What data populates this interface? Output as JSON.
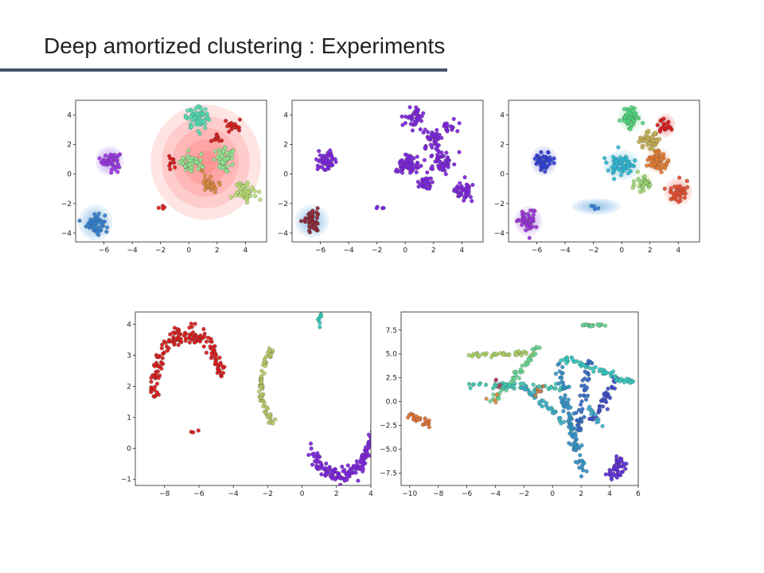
{
  "slide": {
    "title": "Deep amortized clustering : Experiments"
  },
  "chart_data": [
    {
      "type": "scatter",
      "panel": "top-left",
      "title": "",
      "xlabel": "",
      "ylabel": "",
      "xlim": [
        -8,
        5.5
      ],
      "ylim": [
        -4.6,
        5
      ],
      "xticks": [
        -6,
        -4,
        -2,
        0,
        2,
        4
      ],
      "yticks": [
        -4,
        -2,
        0,
        2,
        4
      ],
      "grid": false,
      "ellipses": [
        {
          "cx": 1.2,
          "cy": 0.8,
          "rx": 3.9,
          "ry": 3.9,
          "color": "#ff3030"
        },
        {
          "cx": -5.6,
          "cy": 0.9,
          "rx": 1.0,
          "ry": 1.0,
          "color": "#8a4df2"
        },
        {
          "cx": -6.6,
          "cy": -3.3,
          "rx": 1.2,
          "ry": 1.2,
          "color": "#3a8fd9"
        },
        {
          "cx": 0.6,
          "cy": 3.8,
          "rx": 0.7,
          "ry": 0.7,
          "color": "#4ee0b2"
        },
        {
          "cx": 4.1,
          "cy": -1.1,
          "rx": 0.6,
          "ry": 0.6,
          "color": "#a8e070"
        }
      ],
      "series": [
        {
          "color": "#9b30e8",
          "cx": -5.5,
          "cy": 0.9,
          "sx": 0.32,
          "sy": 0.28,
          "n": 60
        },
        {
          "color": "#2e7fd6",
          "cx": -6.6,
          "cy": -3.3,
          "sx": 0.32,
          "sy": 0.38,
          "n": 55
        },
        {
          "color": "#4fe0b6",
          "cx": 0.6,
          "cy": 3.8,
          "sx": 0.4,
          "sy": 0.35,
          "n": 60
        },
        {
          "color": "#93e890",
          "cx": 2.6,
          "cy": 1.0,
          "sx": 0.4,
          "sy": 0.35,
          "n": 60
        },
        {
          "color": "#93e890",
          "cx": 0.2,
          "cy": 0.7,
          "sx": 0.4,
          "sy": 0.3,
          "n": 50
        },
        {
          "color": "#e08a3a",
          "cx": 1.5,
          "cy": -0.6,
          "sx": 0.3,
          "sy": 0.3,
          "n": 30
        },
        {
          "color": "#b8e070",
          "cx": 4.0,
          "cy": -1.2,
          "sx": 0.35,
          "sy": 0.3,
          "n": 45
        },
        {
          "color": "#d81515",
          "cx": 3.1,
          "cy": 3.3,
          "sx": 0.3,
          "sy": 0.25,
          "n": 18
        },
        {
          "color": "#d81515",
          "cx": 1.9,
          "cy": 2.3,
          "sx": 0.2,
          "sy": 0.15,
          "n": 12
        },
        {
          "color": "#d81515",
          "cx": -1.2,
          "cy": 0.6,
          "sx": 0.15,
          "sy": 0.3,
          "n": 10
        },
        {
          "color": "#d81515",
          "cx": -1.8,
          "cy": -2.3,
          "sx": 0.2,
          "sy": 0.1,
          "n": 4
        }
      ]
    },
    {
      "type": "scatter",
      "panel": "top-middle",
      "title": "",
      "xlabel": "",
      "ylabel": "",
      "xlim": [
        -8,
        5.5
      ],
      "ylim": [
        -4.6,
        5
      ],
      "xticks": [
        -6,
        -4,
        -2,
        0,
        2,
        4
      ],
      "yticks": [
        -4,
        -2,
        0,
        2,
        4
      ],
      "grid": false,
      "ellipses": [
        {
          "cx": -6.6,
          "cy": -3.2,
          "rx": 1.2,
          "ry": 1.1,
          "color": "#3a8fd9"
        }
      ],
      "series": [
        {
          "color": "#7b1de0",
          "cx": -5.5,
          "cy": 0.9,
          "sx": 0.32,
          "sy": 0.3,
          "n": 55
        },
        {
          "color": "#7b1de0",
          "cx": 0.6,
          "cy": 3.8,
          "sx": 0.35,
          "sy": 0.35,
          "n": 50
        },
        {
          "color": "#7b1de0",
          "cx": 2.0,
          "cy": 2.4,
          "sx": 0.35,
          "sy": 0.35,
          "n": 45
        },
        {
          "color": "#7b1de0",
          "cx": 2.6,
          "cy": 0.9,
          "sx": 0.4,
          "sy": 0.35,
          "n": 55
        },
        {
          "color": "#7b1de0",
          "cx": 0.0,
          "cy": 0.6,
          "sx": 0.45,
          "sy": 0.35,
          "n": 65
        },
        {
          "color": "#7b1de0",
          "cx": 1.5,
          "cy": -0.6,
          "sx": 0.3,
          "sy": 0.3,
          "n": 30
        },
        {
          "color": "#7b1de0",
          "cx": 4.0,
          "cy": -1.2,
          "sx": 0.35,
          "sy": 0.3,
          "n": 45
        },
        {
          "color": "#7b1de0",
          "cx": 3.1,
          "cy": 3.3,
          "sx": 0.3,
          "sy": 0.25,
          "n": 18
        },
        {
          "color": "#7b1de0",
          "cx": -1.8,
          "cy": -2.3,
          "sx": 0.2,
          "sy": 0.1,
          "n": 4
        },
        {
          "color": "#8a2030",
          "cx": -6.6,
          "cy": -3.2,
          "sx": 0.3,
          "sy": 0.35,
          "n": 45
        }
      ]
    },
    {
      "type": "scatter",
      "panel": "top-right",
      "title": "",
      "xlabel": "",
      "ylabel": "",
      "xlim": [
        -8,
        5.5
      ],
      "ylim": [
        -4.6,
        5
      ],
      "xticks": [
        -6,
        -4,
        -2,
        0,
        2,
        4
      ],
      "yticks": [
        -4,
        -2,
        0,
        2,
        4
      ],
      "grid": false,
      "ellipses": [
        {
          "cx": -5.5,
          "cy": 0.9,
          "rx": 0.95,
          "ry": 1.0,
          "color": "#5a6ae8"
        },
        {
          "cx": -6.6,
          "cy": -3.2,
          "rx": 1.0,
          "ry": 1.0,
          "color": "#a060e8"
        },
        {
          "cx": -1.8,
          "cy": -2.2,
          "rx": 1.7,
          "ry": 0.55,
          "color": "#3a8fd9"
        },
        {
          "cx": 0.6,
          "cy": 3.8,
          "rx": 0.9,
          "ry": 0.9,
          "color": "#70e08a"
        },
        {
          "cx": 3.1,
          "cy": 3.3,
          "rx": 0.7,
          "ry": 0.8,
          "color": "#e83a3a"
        },
        {
          "cx": 2.0,
          "cy": 2.3,
          "rx": 0.8,
          "ry": 0.8,
          "color": "#e0c060"
        },
        {
          "cx": 0.0,
          "cy": 0.6,
          "rx": 1.3,
          "ry": 1.0,
          "color": "#3ab8d8"
        },
        {
          "cx": 2.6,
          "cy": 0.9,
          "rx": 0.9,
          "ry": 0.85,
          "color": "#e88a40"
        },
        {
          "cx": 1.5,
          "cy": -0.6,
          "rx": 0.7,
          "ry": 0.7,
          "color": "#a8e070"
        },
        {
          "cx": 4.0,
          "cy": -1.2,
          "rx": 1.0,
          "ry": 0.95,
          "color": "#e85a3a"
        }
      ],
      "series": [
        {
          "color": "#2a3ad8",
          "cx": -5.5,
          "cy": 0.9,
          "sx": 0.32,
          "sy": 0.3,
          "n": 55
        },
        {
          "color": "#9a2ad8",
          "cx": -6.6,
          "cy": -3.2,
          "sx": 0.3,
          "sy": 0.35,
          "n": 45
        },
        {
          "color": "#2a78d8",
          "cx": -1.8,
          "cy": -2.3,
          "sx": 0.25,
          "sy": 0.1,
          "n": 4
        },
        {
          "color": "#4ad87a",
          "cx": 0.6,
          "cy": 3.8,
          "sx": 0.35,
          "sy": 0.35,
          "n": 50
        },
        {
          "color": "#d81515",
          "cx": 3.1,
          "cy": 3.3,
          "sx": 0.3,
          "sy": 0.25,
          "n": 18
        },
        {
          "color": "#c8b050",
          "cx": 2.0,
          "cy": 2.3,
          "sx": 0.35,
          "sy": 0.35,
          "n": 45
        },
        {
          "color": "#28b8d8",
          "cx": 0.0,
          "cy": 0.6,
          "sx": 0.45,
          "sy": 0.35,
          "n": 65
        },
        {
          "color": "#e8782a",
          "cx": 2.6,
          "cy": 0.9,
          "sx": 0.4,
          "sy": 0.35,
          "n": 55
        },
        {
          "color": "#9ad870",
          "cx": 1.5,
          "cy": -0.6,
          "sx": 0.3,
          "sy": 0.3,
          "n": 30
        },
        {
          "color": "#e8482a",
          "cx": 4.0,
          "cy": -1.2,
          "sx": 0.35,
          "sy": 0.3,
          "n": 45
        }
      ]
    },
    {
      "type": "scatter",
      "panel": "bottom-left",
      "title": "",
      "xlabel": "",
      "ylabel": "",
      "xlim": [
        -9.7,
        4.0
      ],
      "ylim": [
        -1.2,
        4.4
      ],
      "xticks": [
        -8,
        -6,
        -4,
        -2,
        0,
        2,
        4
      ],
      "yticks": [
        -1,
        0,
        1,
        2,
        3,
        4
      ],
      "grid": false,
      "arcs": [
        {
          "color": "#d81515",
          "cx": -6.6,
          "cy": 1.7,
          "rx": 2.0,
          "ry": 2.0,
          "a0": 180,
          "a1": 20,
          "jitter": 0.15,
          "n": 170
        },
        {
          "color": "#b8c860",
          "cx": -0.3,
          "cy": 2.0,
          "rx": 2.1,
          "ry": 1.6,
          "a0": 130,
          "a1": 230,
          "jitter": 0.08,
          "n": 70
        },
        {
          "color": "#7b1de0",
          "cx": 2.2,
          "cy": 1.0,
          "rx": 2.0,
          "ry": 1.9,
          "a0": 215,
          "a1": 355,
          "jitter": 0.12,
          "n": 160
        }
      ],
      "series": [
        {
          "color": "#d81515",
          "cx": -6.2,
          "cy": 0.55,
          "sx": 0.2,
          "sy": 0.04,
          "n": 3
        },
        {
          "color": "#2ac8b8",
          "cx": 1.0,
          "cy": 4.2,
          "sx": 0.08,
          "sy": 0.15,
          "n": 8
        }
      ]
    },
    {
      "type": "scatter",
      "panel": "bottom-right",
      "title": "",
      "xlabel": "",
      "ylabel": "",
      "xlim": [
        -10.6,
        6.0
      ],
      "ylim": [
        -8.8,
        9.4
      ],
      "xticks": [
        -10,
        -8,
        -6,
        -4,
        -2,
        0,
        2,
        4,
        6
      ],
      "yticks": [
        -7.5,
        -5.0,
        -2.5,
        0.0,
        2.5,
        5.0,
        7.5
      ],
      "grid": false,
      "strokes": [
        {
          "color": "#e07030",
          "x0": -10.0,
          "y0": -1.4,
          "x1": -8.6,
          "y1": -2.4,
          "w": 0.35,
          "n": 25
        },
        {
          "color": "#a8d060",
          "x0": -5.6,
          "y0": 5.0,
          "x1": -1.2,
          "y1": 5.0,
          "w": 0.25,
          "n": 40
        },
        {
          "color": "#60d890",
          "x0": -4.1,
          "y0": 0.0,
          "x1": -1.0,
          "y1": 5.7,
          "w": 0.3,
          "n": 45
        },
        {
          "color": "#38c8b0",
          "x0": -6.0,
          "y0": 1.8,
          "x1": 1.2,
          "y1": 1.4,
          "w": 0.3,
          "n": 55
        },
        {
          "color": "#30b0c8",
          "x0": -2.3,
          "y0": 2.0,
          "x1": 1.5,
          "y1": -3.0,
          "w": 0.3,
          "n": 45
        },
        {
          "color": "#2a90c8",
          "x0": 0.3,
          "y0": 4.0,
          "x1": 2.0,
          "y1": -7.5,
          "w": 0.35,
          "n": 90
        },
        {
          "color": "#2a68c8",
          "x0": 2.5,
          "y0": 4.5,
          "x1": 1.9,
          "y1": -3.0,
          "w": 0.3,
          "n": 50
        },
        {
          "color": "#3a48c8",
          "x0": 4.5,
          "y0": 2.5,
          "x1": 2.8,
          "y1": -2.0,
          "w": 0.35,
          "n": 45
        },
        {
          "color": "#30c8c0",
          "x0": 0.8,
          "y0": 4.5,
          "x1": 5.6,
          "y1": 2.0,
          "w": 0.3,
          "n": 60
        },
        {
          "color": "#60d890",
          "x0": 2.0,
          "y0": 8.0,
          "x1": 3.8,
          "y1": 8.0,
          "w": 0.15,
          "n": 20
        },
        {
          "color": "#38b0d0",
          "x0": 2.5,
          "y0": -0.5,
          "x1": 3.5,
          "y1": -2.8,
          "w": 0.2,
          "n": 15
        }
      ],
      "arcs": [
        {
          "color": "#5a28d8",
          "cx": 3.4,
          "cy": -6.6,
          "rx": 1.3,
          "ry": 1.2,
          "a0": 300,
          "a1": 390,
          "jitter": 0.25,
          "n": 45
        }
      ],
      "series": [
        {
          "color": "#c87840",
          "cx": -1.1,
          "cy": 1.2,
          "sx": 0.3,
          "sy": 0.3,
          "n": 6
        },
        {
          "color": "#d89040",
          "cx": -4.0,
          "cy": 0.5,
          "sx": 0.3,
          "sy": 0.3,
          "n": 5
        },
        {
          "color": "#b04060",
          "cx": -3.7,
          "cy": 1.8,
          "sx": 0.2,
          "sy": 0.3,
          "n": 4
        }
      ]
    }
  ]
}
